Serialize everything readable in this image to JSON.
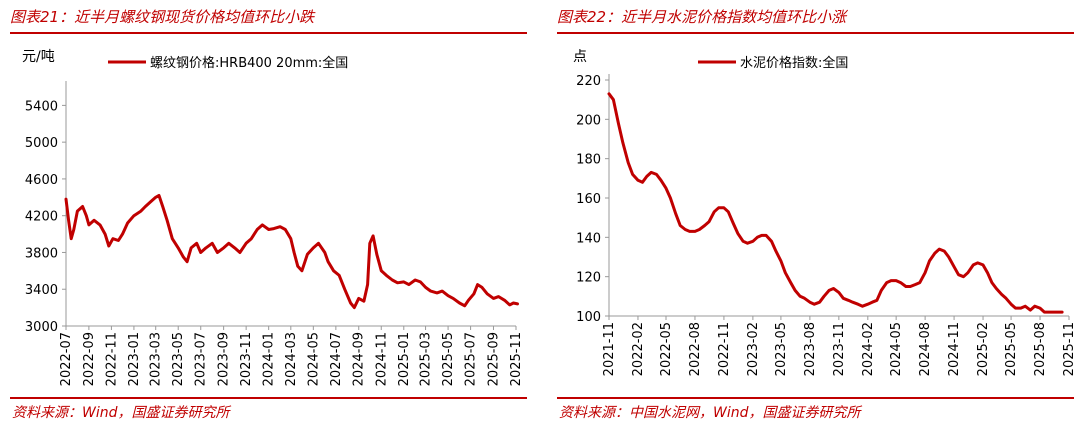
{
  "charts": [
    {
      "figure_title": "图表21：近半月螺纹钢现货价格均值环比小跌",
      "source": "资料来源：Wind，国盛证券研究所",
      "unit": "元/吨"
    },
    {
      "figure_title": "图表22：近半月水泥价格指数均值环比小涨",
      "source": "资料来源：中国水泥网，Wind，国盛证券研究所",
      "unit": "点"
    }
  ],
  "chart_data": [
    {
      "type": "line",
      "title": "",
      "ylabel": "元/吨",
      "ylim": [
        3000,
        5600
      ],
      "yticks": [
        "3000",
        "3400",
        "3800",
        "4200",
        "4600",
        "5000",
        "5400"
      ],
      "xlim": [
        "2022-07",
        "2025-11"
      ],
      "xticks": [
        "2022-07",
        "2022-09",
        "2022-11",
        "2023-01",
        "2023-03",
        "2023-05",
        "2023-07",
        "2023-09",
        "2023-11",
        "2024-01",
        "2024-03",
        "2024-05",
        "2024-07",
        "2024-09",
        "2024-11",
        "2025-01",
        "2025-03",
        "2025-05",
        "2025-07",
        "2025-09",
        "2025-11"
      ],
      "legend": "top-center",
      "grid": false,
      "color": "#c00000",
      "series": [
        {
          "name": "螺纹钢价格:HRB400 20mm:全国",
          "points": [
            [
              "2022-07-01",
              4380
            ],
            [
              "2022-07-08",
              4150
            ],
            [
              "2022-07-15",
              3950
            ],
            [
              "2022-07-22",
              4050
            ],
            [
              "2022-08-01",
              4250
            ],
            [
              "2022-08-15",
              4300
            ],
            [
              "2022-08-25",
              4200
            ],
            [
              "2022-09-01",
              4100
            ],
            [
              "2022-09-15",
              4150
            ],
            [
              "2022-10-01",
              4100
            ],
            [
              "2022-10-15",
              4000
            ],
            [
              "2022-10-25",
              3870
            ],
            [
              "2022-11-05",
              3950
            ],
            [
              "2022-11-20",
              3930
            ],
            [
              "2022-12-01",
              4000
            ],
            [
              "2022-12-15",
              4120
            ],
            [
              "2023-01-01",
              4200
            ],
            [
              "2023-01-20",
              4250
            ],
            [
              "2023-02-01",
              4300
            ],
            [
              "2023-02-15",
              4350
            ],
            [
              "2023-03-01",
              4400
            ],
            [
              "2023-03-10",
              4420
            ],
            [
              "2023-03-20",
              4300
            ],
            [
              "2023-04-01",
              4150
            ],
            [
              "2023-04-15",
              3950
            ],
            [
              "2023-05-01",
              3850
            ],
            [
              "2023-05-15",
              3750
            ],
            [
              "2023-05-25",
              3700
            ],
            [
              "2023-06-05",
              3850
            ],
            [
              "2023-06-20",
              3900
            ],
            [
              "2023-07-01",
              3800
            ],
            [
              "2023-07-15",
              3850
            ],
            [
              "2023-08-01",
              3900
            ],
            [
              "2023-08-15",
              3800
            ],
            [
              "2023-09-01",
              3850
            ],
            [
              "2023-09-15",
              3900
            ],
            [
              "2023-10-01",
              3850
            ],
            [
              "2023-10-15",
              3800
            ],
            [
              "2023-11-01",
              3900
            ],
            [
              "2023-11-15",
              3950
            ],
            [
              "2023-12-01",
              4050
            ],
            [
              "2023-12-15",
              4100
            ],
            [
              "2024-01-01",
              4050
            ],
            [
              "2024-01-15",
              4060
            ],
            [
              "2024-02-01",
              4080
            ],
            [
              "2024-02-15",
              4050
            ],
            [
              "2024-03-01",
              3950
            ],
            [
              "2024-03-10",
              3800
            ],
            [
              "2024-03-20",
              3650
            ],
            [
              "2024-03-31",
              3600
            ],
            [
              "2024-04-15",
              3780
            ],
            [
              "2024-05-01",
              3850
            ],
            [
              "2024-05-15",
              3900
            ],
            [
              "2024-06-01",
              3800
            ],
            [
              "2024-06-10",
              3700
            ],
            [
              "2024-06-25",
              3600
            ],
            [
              "2024-07-10",
              3550
            ],
            [
              "2024-07-25",
              3400
            ],
            [
              "2024-08-10",
              3250
            ],
            [
              "2024-08-20",
              3200
            ],
            [
              "2024-09-01",
              3300
            ],
            [
              "2024-09-15",
              3270
            ],
            [
              "2024-09-25",
              3450
            ],
            [
              "2024-10-01",
              3900
            ],
            [
              "2024-10-10",
              3980
            ],
            [
              "2024-10-20",
              3780
            ],
            [
              "2024-11-01",
              3600
            ],
            [
              "2024-11-15",
              3550
            ],
            [
              "2024-12-01",
              3500
            ],
            [
              "2024-12-15",
              3470
            ],
            [
              "2025-01-01",
              3480
            ],
            [
              "2025-01-15",
              3450
            ],
            [
              "2025-02-01",
              3500
            ],
            [
              "2025-02-15",
              3480
            ],
            [
              "2025-03-01",
              3420
            ],
            [
              "2025-03-15",
              3380
            ],
            [
              "2025-04-01",
              3360
            ],
            [
              "2025-04-15",
              3380
            ],
            [
              "2025-05-01",
              3330
            ],
            [
              "2025-05-15",
              3300
            ],
            [
              "2025-06-01",
              3250
            ],
            [
              "2025-06-15",
              3220
            ],
            [
              "2025-06-25",
              3280
            ],
            [
              "2025-07-10",
              3350
            ],
            [
              "2025-07-20",
              3450
            ],
            [
              "2025-08-01",
              3420
            ],
            [
              "2025-08-15",
              3350
            ],
            [
              "2025-09-01",
              3300
            ],
            [
              "2025-09-15",
              3320
            ],
            [
              "2025-10-01",
              3280
            ],
            [
              "2025-10-15",
              3230
            ],
            [
              "2025-10-25",
              3250
            ],
            [
              "2025-11-05",
              3240
            ]
          ]
        }
      ]
    },
    {
      "type": "line",
      "title": "",
      "ylabel": "点",
      "ylim": [
        100,
        220
      ],
      "yticks": [
        "100",
        "120",
        "140",
        "160",
        "180",
        "200",
        "220"
      ],
      "xlim": [
        "2021-11",
        "2025-11"
      ],
      "xticks": [
        "2021-11",
        "2022-02",
        "2022-05",
        "2022-08",
        "2022-11",
        "2023-02",
        "2023-05",
        "2023-08",
        "2023-11",
        "2024-02",
        "2024-05",
        "2024-08",
        "2024-11",
        "2025-02",
        "2025-05",
        "2025-08",
        "2025-11"
      ],
      "legend": "top-center",
      "grid": false,
      "color": "#c00000",
      "series": [
        {
          "name": "水泥价格指数:全国",
          "points": [
            [
              "2021-11-01",
              213
            ],
            [
              "2021-11-15",
              210
            ],
            [
              "2021-12-01",
              198
            ],
            [
              "2021-12-15",
              188
            ],
            [
              "2022-01-01",
              178
            ],
            [
              "2022-01-15",
              172
            ],
            [
              "2022-02-01",
              169
            ],
            [
              "2022-02-15",
              168
            ],
            [
              "2022-03-01",
              171
            ],
            [
              "2022-03-15",
              173
            ],
            [
              "2022-04-01",
              172
            ],
            [
              "2022-04-15",
              169
            ],
            [
              "2022-05-01",
              165
            ],
            [
              "2022-05-15",
              160
            ],
            [
              "2022-06-01",
              152
            ],
            [
              "2022-06-15",
              146
            ],
            [
              "2022-07-01",
              144
            ],
            [
              "2022-07-15",
              143
            ],
            [
              "2022-08-01",
              143
            ],
            [
              "2022-08-15",
              144
            ],
            [
              "2022-09-01",
              146
            ],
            [
              "2022-09-15",
              148
            ],
            [
              "2022-10-01",
              153
            ],
            [
              "2022-10-15",
              155
            ],
            [
              "2022-11-01",
              155
            ],
            [
              "2022-11-15",
              153
            ],
            [
              "2022-12-01",
              147
            ],
            [
              "2022-12-15",
              142
            ],
            [
              "2023-01-01",
              138
            ],
            [
              "2023-01-15",
              137
            ],
            [
              "2023-02-01",
              138
            ],
            [
              "2023-02-15",
              140
            ],
            [
              "2023-03-01",
              141
            ],
            [
              "2023-03-15",
              141
            ],
            [
              "2023-04-01",
              138
            ],
            [
              "2023-04-15",
              133
            ],
            [
              "2023-05-01",
              128
            ],
            [
              "2023-05-15",
              122
            ],
            [
              "2023-06-01",
              117
            ],
            [
              "2023-06-15",
              113
            ],
            [
              "2023-07-01",
              110
            ],
            [
              "2023-07-15",
              109
            ],
            [
              "2023-08-01",
              107
            ],
            [
              "2023-08-15",
              106
            ],
            [
              "2023-09-01",
              107
            ],
            [
              "2023-09-15",
              110
            ],
            [
              "2023-10-01",
              113
            ],
            [
              "2023-10-15",
              114
            ],
            [
              "2023-11-01",
              112
            ],
            [
              "2023-11-15",
              109
            ],
            [
              "2023-12-01",
              108
            ],
            [
              "2023-12-15",
              107
            ],
            [
              "2024-01-01",
              106
            ],
            [
              "2024-01-15",
              105
            ],
            [
              "2024-02-01",
              106
            ],
            [
              "2024-02-15",
              107
            ],
            [
              "2024-03-01",
              108
            ],
            [
              "2024-03-15",
              113
            ],
            [
              "2024-04-01",
              117
            ],
            [
              "2024-04-15",
              118
            ],
            [
              "2024-05-01",
              118
            ],
            [
              "2024-05-15",
              117
            ],
            [
              "2024-06-01",
              115
            ],
            [
              "2024-06-15",
              115
            ],
            [
              "2024-07-01",
              116
            ],
            [
              "2024-07-15",
              117
            ],
            [
              "2024-08-01",
              122
            ],
            [
              "2024-08-15",
              128
            ],
            [
              "2024-09-01",
              132
            ],
            [
              "2024-09-15",
              134
            ],
            [
              "2024-10-01",
              133
            ],
            [
              "2024-10-15",
              130
            ],
            [
              "2024-11-01",
              125
            ],
            [
              "2024-11-15",
              121
            ],
            [
              "2024-12-01",
              120
            ],
            [
              "2024-12-15",
              122
            ],
            [
              "2025-01-01",
              126
            ],
            [
              "2025-01-15",
              127
            ],
            [
              "2025-02-01",
              126
            ],
            [
              "2025-02-15",
              122
            ],
            [
              "2025-03-01",
              117
            ],
            [
              "2025-03-15",
              114
            ],
            [
              "2025-04-01",
              111
            ],
            [
              "2025-04-15",
              109
            ],
            [
              "2025-05-01",
              106
            ],
            [
              "2025-05-15",
              104
            ],
            [
              "2025-06-01",
              104
            ],
            [
              "2025-06-15",
              105
            ],
            [
              "2025-07-01",
              103
            ],
            [
              "2025-07-15",
              105
            ],
            [
              "2025-08-01",
              104
            ],
            [
              "2025-08-15",
              102
            ],
            [
              "2025-09-01",
              102
            ],
            [
              "2025-09-15",
              102
            ],
            [
              "2025-10-01",
              102
            ],
            [
              "2025-10-10",
              102
            ]
          ]
        }
      ]
    }
  ]
}
